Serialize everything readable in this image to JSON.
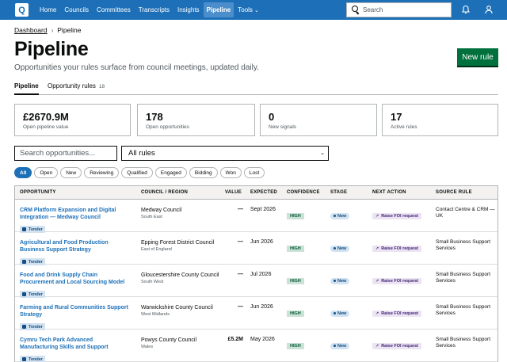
{
  "app": {
    "logo_letter": "Q",
    "nav": [
      {
        "label": "Home"
      },
      {
        "label": "Councils"
      },
      {
        "label": "Committees"
      },
      {
        "label": "Transcripts"
      },
      {
        "label": "Insights"
      },
      {
        "label": "Pipeline",
        "active": true
      },
      {
        "label": "Tools"
      }
    ],
    "search_placeholder": "Search",
    "brand_color": "#1d70b8"
  },
  "breadcrumb": {
    "root": "Dashboard",
    "current": "Pipeline"
  },
  "page": {
    "title": "Pipeline",
    "subtitle": "Opportunities your rules surface from council meetings, updated daily.",
    "new_rule_label": "New rule"
  },
  "tabs": {
    "pipeline": "Pipeline",
    "rules": "Opportunity rules",
    "rules_count": "18"
  },
  "stats": [
    {
      "value": "£2670.9M",
      "label": "Open pipeline value"
    },
    {
      "value": "178",
      "label": "Open opportunities"
    },
    {
      "value": "0",
      "label": "New signals"
    },
    {
      "value": "17",
      "label": "Active rules"
    }
  ],
  "filters": {
    "search_placeholder": "Search opportunities...",
    "rules_selected": "All rules",
    "stages": [
      "All",
      "Open",
      "New",
      "Reviewing",
      "Qualified",
      "Engaged",
      "Bidding",
      "Won",
      "Lost"
    ],
    "active_stage": "All"
  },
  "table": {
    "headers": {
      "opportunity": "OPPORTUNITY",
      "council": "COUNCIL / REGION",
      "value": "VALUE",
      "expected": "EXPECTED",
      "confidence": "CONFIDENCE",
      "stage": "STAGE",
      "next_action": "NEXT ACTION",
      "source_rule": "SOURCE RULE"
    },
    "rows": [
      {
        "title": "CRM Platform Expansion and Digital Integration — Medway Council",
        "badge": "Tender",
        "council": "Medway Council",
        "region": "South East",
        "value": "—",
        "expected": "Sept 2026",
        "confidence": "HIGH",
        "stage": "New",
        "action": "Raise FOI request",
        "source": "Contact Centre & CRM — UK"
      },
      {
        "title": "Agricultural and Food Production Business Support Strategy",
        "badge": "Tender",
        "council": "Epping Forest District Council",
        "region": "East of England",
        "value": "—",
        "expected": "Jun 2026",
        "confidence": "HIGH",
        "stage": "New",
        "action": "Raise FOI request",
        "source": "Small Business Support Services"
      },
      {
        "title": "Food and Drink Supply Chain Procurement and Local Sourcing Model",
        "badge": "Tender",
        "council": "Gloucestershire County Council",
        "region": "South West",
        "value": "—",
        "expected": "Jul 2026",
        "confidence": "HIGH",
        "stage": "New",
        "action": "Raise FOI request",
        "source": "Small Business Support Services"
      },
      {
        "title": "Farming and Rural Communities Support Strategy",
        "badge": "Tender",
        "council": "Warwickshire County Council",
        "region": "West Midlands",
        "value": "—",
        "expected": "Jun 2026",
        "confidence": "HIGH",
        "stage": "New",
        "action": "Raise FOI request",
        "source": "Small Business Support Services"
      },
      {
        "title": "Cymru Tech Park Advanced Manufacturing Skills and Support",
        "badge": "Tender",
        "council": "Powys County Council",
        "region": "Wales",
        "value": "£5.2M",
        "expected": "May 2026",
        "confidence": "HIGH",
        "stage": "New",
        "action": "Raise FOI request",
        "source": "Small Business Support Services"
      }
    ]
  }
}
